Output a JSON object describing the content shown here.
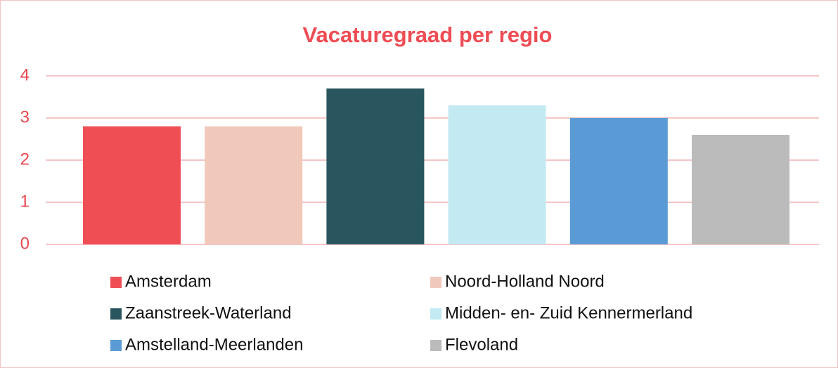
{
  "chart_data": {
    "type": "bar",
    "title": "Vacaturegraad per regio",
    "series": [
      {
        "name": "Amsterdam",
        "color": "#f04e55",
        "values": [
          2.8
        ]
      },
      {
        "name": "Noord-Holland Noord",
        "color": "#f0c9bb",
        "values": [
          2.8
        ]
      },
      {
        "name": "Zaanstreek-Waterland",
        "color": "#29565e",
        "values": [
          3.7
        ]
      },
      {
        "name": "Midden- en- Zuid Kennermerland",
        "color": "#c3eaf2",
        "values": [
          3.3
        ]
      },
      {
        "name": "Amstelland-Meerlanden",
        "color": "#5b9bd5",
        "values": [
          3.0
        ]
      },
      {
        "name": "Flevoland",
        "color": "#bbbbbb",
        "values": [
          2.6
        ]
      }
    ],
    "ylim": [
      0,
      4
    ],
    "yticks": [
      0,
      1,
      2,
      3,
      4
    ],
    "grid": true,
    "legend": "bottom"
  }
}
